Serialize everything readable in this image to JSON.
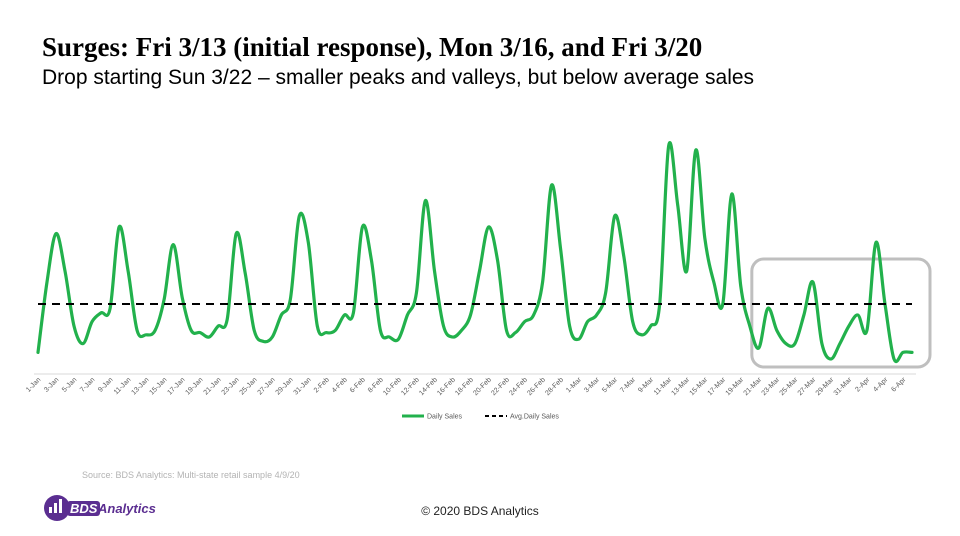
{
  "slide": {
    "title": "Surges: Fri 3/13 (initial response), Mon 3/16, and Fri 3/20",
    "subtitle": "Drop starting Sun 3/22 – smaller peaks and valleys, but below average sales",
    "source": "Source: BDS Analytics: Multi-state retail sample   4/9/20",
    "copyright": "© 2020 BDS Analytics",
    "logo": {
      "mark_text": "BDS",
      "text": "Analytics",
      "color": "#5b2e91"
    }
  },
  "chart_data": {
    "type": "line",
    "title": "",
    "xlabel": "",
    "ylabel": "",
    "ylim": [
      0,
      100
    ],
    "grid": false,
    "legend_position": "bottom",
    "x": [
      "1-Jan",
      "2-Jan",
      "3-Jan",
      "4-Jan",
      "5-Jan",
      "6-Jan",
      "7-Jan",
      "8-Jan",
      "9-Jan",
      "10-Jan",
      "11-Jan",
      "12-Jan",
      "13-Jan",
      "14-Jan",
      "15-Jan",
      "16-Jan",
      "17-Jan",
      "18-Jan",
      "19-Jan",
      "20-Jan",
      "21-Jan",
      "22-Jan",
      "23-Jan",
      "24-Jan",
      "25-Jan",
      "26-Jan",
      "27-Jan",
      "28-Jan",
      "29-Jan",
      "30-Jan",
      "31-Jan",
      "1-Feb",
      "2-Feb",
      "3-Feb",
      "4-Feb",
      "5-Feb",
      "6-Feb",
      "7-Feb",
      "8-Feb",
      "9-Feb",
      "10-Feb",
      "11-Feb",
      "12-Feb",
      "13-Feb",
      "14-Feb",
      "15-Feb",
      "16-Feb",
      "17-Feb",
      "18-Feb",
      "19-Feb",
      "20-Feb",
      "21-Feb",
      "22-Feb",
      "23-Feb",
      "24-Feb",
      "25-Feb",
      "26-Feb",
      "27-Feb",
      "28-Feb",
      "29-Feb",
      "1-Mar",
      "2-Mar",
      "3-Mar",
      "4-Mar",
      "5-Mar",
      "6-Mar",
      "7-Mar",
      "8-Mar",
      "9-Mar",
      "10-Mar",
      "11-Mar",
      "12-Mar",
      "13-Mar",
      "14-Mar",
      "15-Mar",
      "16-Mar",
      "17-Mar",
      "18-Mar",
      "19-Mar",
      "20-Mar",
      "21-Mar",
      "22-Mar",
      "23-Mar",
      "24-Mar",
      "25-Mar",
      "26-Mar",
      "27-Mar",
      "28-Mar",
      "29-Mar",
      "30-Mar",
      "31-Mar",
      "1-Apr",
      "2-Apr",
      "3-Apr",
      "4-Apr",
      "5-Apr",
      "6-Apr",
      "7-Apr"
    ],
    "tick_labels": [
      "1-Jan",
      "3-Jan",
      "5-Jan",
      "7-Jan",
      "9-Jan",
      "11-Jan",
      "13-Jan",
      "15-Jan",
      "17-Jan",
      "19-Jan",
      "21-Jan",
      "23-Jan",
      "25-Jan",
      "27-Jan",
      "29-Jan",
      "31-Jan",
      "2-Feb",
      "4-Feb",
      "6-Feb",
      "8-Feb",
      "10-Feb",
      "12-Feb",
      "14-Feb",
      "16-Feb",
      "18-Feb",
      "20-Feb",
      "22-Feb",
      "24-Feb",
      "26-Feb",
      "28-Feb",
      "1-Mar",
      "3-Mar",
      "5-Mar",
      "7-Mar",
      "9-Mar",
      "11-Mar",
      "13-Mar",
      "15-Mar",
      "17-Mar",
      "19-Mar",
      "21-Mar",
      "23-Mar",
      "25-Mar",
      "27-Mar",
      "29-Mar",
      "31-Mar",
      "2-Apr",
      "4-Apr",
      "6-Apr"
    ],
    "series": [
      {
        "name": "Daily Sales",
        "color": "#22b14c",
        "style": "solid",
        "values": [
          8,
          40,
          62,
          45,
          20,
          12,
          22,
          26,
          28,
          65,
          45,
          18,
          16,
          18,
          32,
          57,
          33,
          18,
          17,
          15,
          20,
          23,
          62,
          44,
          18,
          13,
          15,
          25,
          32,
          70,
          58,
          20,
          17,
          18,
          25,
          26,
          65,
          50,
          18,
          15,
          14,
          25,
          35,
          77,
          45,
          20,
          15,
          18,
          25,
          45,
          65,
          50,
          18,
          17,
          22,
          25,
          40,
          84,
          55,
          20,
          14,
          22,
          25,
          35,
          70,
          52,
          22,
          16,
          20,
          30,
          102,
          75,
          45,
          100,
          60,
          40,
          30,
          80,
          38,
          20,
          10,
          28,
          18,
          12,
          12,
          25,
          40,
          12,
          5,
          12,
          20,
          25,
          18,
          58,
          30,
          5,
          8,
          8
        ]
      },
      {
        "name": "Avg.Daily Sales",
        "color": "#000000",
        "style": "dashed",
        "values": [
          30,
          30,
          30,
          30,
          30,
          30,
          30,
          30,
          30,
          30,
          30,
          30,
          30,
          30,
          30,
          30,
          30,
          30,
          30,
          30,
          30,
          30,
          30,
          30,
          30,
          30,
          30,
          30,
          30,
          30,
          30,
          30,
          30,
          30,
          30,
          30,
          30,
          30,
          30,
          30,
          30,
          30,
          30,
          30,
          30,
          30,
          30,
          30,
          30,
          30,
          30,
          30,
          30,
          30,
          30,
          30,
          30,
          30,
          30,
          30,
          30,
          30,
          30,
          30,
          30,
          30,
          30,
          30,
          30,
          30,
          30,
          30,
          30,
          30,
          30,
          30,
          30,
          30,
          30,
          30,
          30,
          30,
          30,
          30,
          30,
          30,
          30,
          30,
          30,
          30,
          30,
          30,
          30,
          30,
          30,
          30,
          30,
          30
        ]
      }
    ],
    "highlight": {
      "from": "21-Mar",
      "to": "7-Apr",
      "color": "#bfbfbf"
    }
  }
}
